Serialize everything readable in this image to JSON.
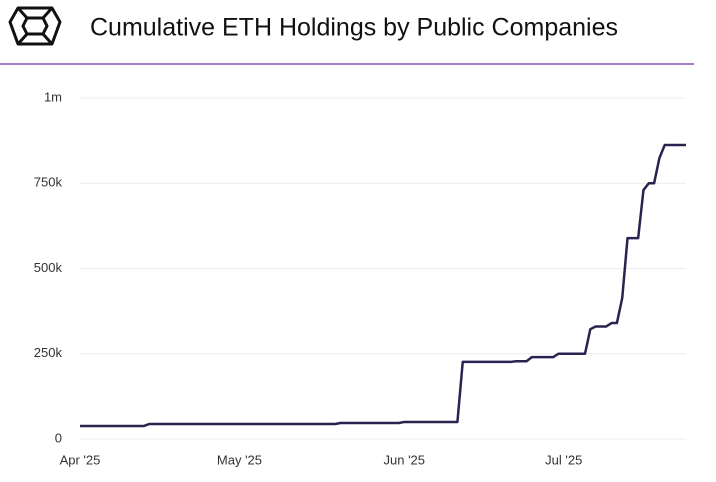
{
  "chart_data": {
    "type": "line",
    "title": "Cumulative ETH Holdings by Public Companies",
    "categories": [
      "Apr '25",
      null,
      null,
      null,
      null,
      null,
      null,
      null,
      null,
      null,
      null,
      null,
      null,
      null,
      null,
      null,
      null,
      null,
      null,
      null,
      null,
      null,
      null,
      null,
      null,
      null,
      null,
      null,
      null,
      null,
      "May '25",
      null,
      null,
      null,
      null,
      null,
      null,
      null,
      null,
      null,
      null,
      null,
      null,
      null,
      null,
      null,
      null,
      null,
      null,
      null,
      null,
      null,
      null,
      null,
      null,
      null,
      null,
      null,
      null,
      null,
      null,
      "Jun '25",
      null,
      null,
      null,
      null,
      null,
      null,
      null,
      null,
      null,
      null,
      null,
      null,
      null,
      null,
      null,
      null,
      null,
      null,
      null,
      null,
      null,
      null,
      null,
      null,
      null,
      null,
      null,
      null,
      null,
      "Jul '25",
      null,
      null,
      null,
      null,
      null,
      null,
      null,
      null,
      null,
      null,
      null,
      null,
      null,
      null,
      null,
      null,
      null,
      null,
      null,
      null,
      null,
      null,
      null
    ],
    "series": [
      {
        "color": "#2a2350",
        "values": [
          38000,
          38000,
          38000,
          38000,
          38000,
          38000,
          38000,
          38000,
          38000,
          38000,
          38000,
          38000,
          38000,
          44000,
          44000,
          44000,
          44000,
          44000,
          44000,
          44000,
          44000,
          44000,
          44000,
          44000,
          44000,
          44000,
          44000,
          44000,
          44000,
          44000,
          44000,
          44000,
          44000,
          44000,
          44000,
          44000,
          44000,
          44000,
          44000,
          44000,
          44000,
          44000,
          44000,
          44000,
          44000,
          44000,
          44000,
          44000,
          44000,
          47000,
          47000,
          47000,
          47000,
          47000,
          47000,
          47000,
          47000,
          47000,
          47000,
          47000,
          47000,
          50000,
          50000,
          50000,
          50000,
          50000,
          50000,
          50000,
          50000,
          50000,
          50000,
          50000,
          226000,
          226000,
          226000,
          226000,
          226000,
          226000,
          226000,
          226000,
          226000,
          226000,
          228000,
          228000,
          228000,
          240000,
          240000,
          240000,
          240000,
          240000,
          250000,
          250000,
          250000,
          250000,
          250000,
          250000,
          322000,
          330000,
          330000,
          330000,
          340000,
          340000,
          413000,
          589000,
          589000,
          589000,
          730000,
          750000,
          750000,
          824000,
          862000,
          862000,
          862000,
          862000,
          862000
        ]
      }
    ],
    "ylim": [
      0,
      1000000
    ],
    "yticks": [
      0,
      {
        "value": 250000,
        "label": "250k"
      },
      {
        "value": 500000,
        "label": "500k"
      },
      {
        "value": 750000,
        "label": "750k"
      },
      {
        "value": 1000000,
        "label": "1m"
      }
    ],
    "grid": true
  }
}
